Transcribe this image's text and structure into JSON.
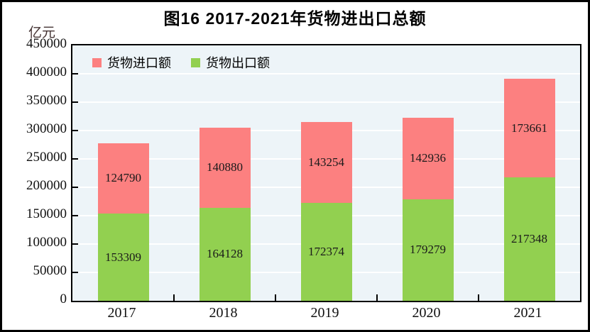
{
  "page": {
    "background": "#ffffff",
    "frame_border_color": "#000000"
  },
  "chart_data": {
    "type": "bar",
    "stacked": true,
    "title": "图16  2017-2021年货物进出口总额",
    "unit_label": "亿元",
    "categories": [
      "2017",
      "2018",
      "2019",
      "2020",
      "2021"
    ],
    "series": [
      {
        "name": "货物出口额",
        "color": "#92d050",
        "values": [
          153309,
          164128,
          172374,
          179279,
          217348
        ]
      },
      {
        "name": "货物进口额",
        "color": "#fc8080",
        "values": [
          124790,
          140880,
          143254,
          142936,
          173661
        ]
      }
    ],
    "legend": {
      "position": "top-left-inside",
      "items": [
        {
          "label": "货物进口额",
          "color": "#fc8080"
        },
        {
          "label": "货物出口额",
          "color": "#92d050"
        }
      ]
    },
    "ylim": [
      0,
      450000
    ],
    "yticks": [
      0,
      50000,
      100000,
      150000,
      200000,
      250000,
      300000,
      350000,
      400000,
      450000
    ],
    "grid": {
      "horizontal": true,
      "color": "#ffffff"
    },
    "plot_background": "#edf4f8",
    "bar_labels": true,
    "bar_label_format": "plain-integer"
  }
}
